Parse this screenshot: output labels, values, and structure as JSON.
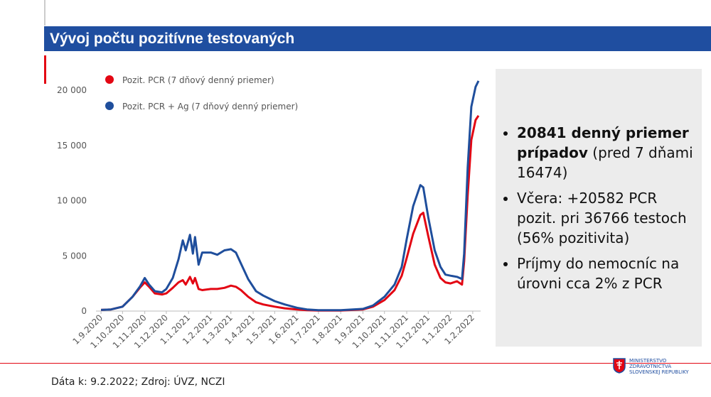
{
  "slide": {
    "title": "Vývoj počtu pozitívne testovaných",
    "footer": "Dáta k: 9.2.2022; Zdroj: ÚVZ, NCZI",
    "logo": [
      "MINISTERSTVO",
      "ZDRAVOTNÍCTVA",
      "SLOVENSKEJ REPUBLIKY"
    ],
    "bullets": [
      {
        "bold": "20841 denný priemer prípadov",
        "text": " (pred 7 dňami 16474)"
      },
      {
        "text": "Včera: +20582 PCR pozit. pri 36766 testoch (56% pozitivita)"
      },
      {
        "text": "Príjmy do nemocníc na úrovni cca 2% z PCR"
      }
    ]
  },
  "chart_data": {
    "type": "line",
    "x": [
      "1.9.2020",
      "15.9.2020",
      "1.10.2020",
      "15.10.2020",
      "25.10.2020",
      "1.11.2020",
      "7.11.2020",
      "15.11.2020",
      "25.11.2020",
      "1.12.2020",
      "10.12.2020",
      "18.12.2020",
      "24.12.2020",
      "28.12.2020",
      "3.1.2021",
      "7.1.2021",
      "10.1.2021",
      "15.1.2021",
      "20.1.2021",
      "1.2.2021",
      "10.2.2021",
      "20.2.2021",
      "1.3.2021",
      "8.3.2021",
      "15.3.2021",
      "25.3.2021",
      "5.4.2021",
      "15.4.2021",
      "1.5.2021",
      "15.5.2021",
      "1.6.2021",
      "15.6.2021",
      "1.7.2021",
      "1.8.2021",
      "1.9.2021",
      "15.9.2021",
      "1.10.2021",
      "15.10.2021",
      "25.10.2021",
      "1.11.2021",
      "10.11.2021",
      "20.11.2021",
      "24.11.2021",
      "1.12.2021",
      "10.12.2021",
      "18.12.2021",
      "25.12.2021",
      "1.1.2022",
      "10.1.2022",
      "17.1.2022",
      "20.1.2022",
      "25.1.2022",
      "30.1.2022",
      "5.2.2022",
      "9.2.2022"
    ],
    "series": [
      {
        "name": "Pozit. PCR (7 dňový denný priemer)",
        "color": "#e30613",
        "values": [
          100,
          150,
          400,
          1300,
          2100,
          2600,
          2200,
          1600,
          1500,
          1600,
          2100,
          2600,
          2800,
          2400,
          3100,
          2500,
          3000,
          2000,
          1900,
          2000,
          2000,
          2100,
          2300,
          2200,
          1900,
          1300,
          800,
          600,
          400,
          250,
          150,
          80,
          50,
          50,
          150,
          400,
          1000,
          1900,
          3200,
          4800,
          7000,
          8700,
          8900,
          6800,
          4200,
          3000,
          2600,
          2500,
          2700,
          2400,
          4500,
          10500,
          15500,
          17300,
          17700
        ]
      },
      {
        "name": "Pozit. PCR + Ag (7 dňový denný priemer)",
        "color": "#1f4e9c",
        "values": [
          100,
          150,
          400,
          1300,
          2200,
          3000,
          2400,
          1800,
          1700,
          2000,
          3000,
          4700,
          6400,
          5500,
          6900,
          5200,
          6700,
          4200,
          5300,
          5300,
          5100,
          5500,
          5600,
          5300,
          4300,
          2900,
          1800,
          1400,
          900,
          600,
          300,
          150,
          80,
          80,
          200,
          500,
          1300,
          2400,
          4000,
          6500,
          9500,
          11400,
          11200,
          8500,
          5500,
          4000,
          3300,
          3200,
          3100,
          2900,
          5200,
          13000,
          18500,
          20300,
          20841
        ]
      }
    ],
    "xlim": [
      "25.8.2020",
      "12.2.2022"
    ],
    "xticks": [
      "1.9.2020",
      "1.10.2020",
      "1.11.2020",
      "1.12.2020",
      "1.1.2021",
      "1.2.2021",
      "1.3.2021",
      "1.4.2021",
      "1.5.2021",
      "1.6.2021",
      "1.7.2021",
      "1.8.2021",
      "1.9.2021",
      "1.10.2021",
      "1.11.2021",
      "1.12.2021",
      "1.1.2022",
      "1.2.2022"
    ],
    "ylim": [
      0,
      20000
    ],
    "yticks": [
      0,
      {
        "value": 5000,
        "label": "5 000"
      },
      {
        "value": 10000,
        "label": "10 000"
      },
      {
        "value": 15000,
        "label": "15 000"
      },
      {
        "value": 20000,
        "label": "20 000"
      }
    ]
  }
}
